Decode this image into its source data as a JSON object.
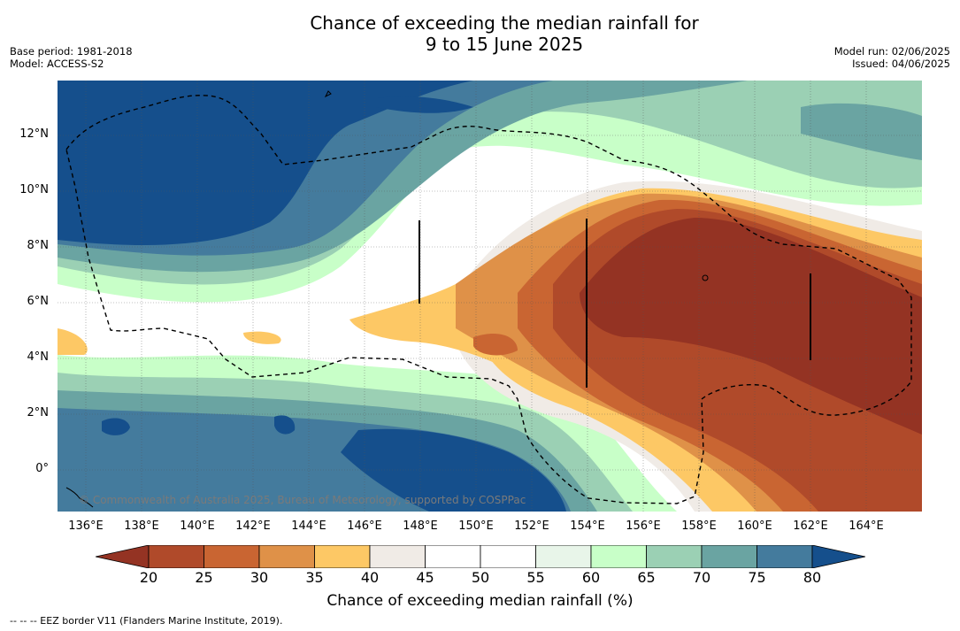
{
  "title_line1": "Chance of exceeding the median rainfall for",
  "title_line2": "9 to 15 June 2025",
  "meta_left": {
    "base_period": "Base period: 1981-2018",
    "model": "Model: ACCESS-S2"
  },
  "meta_right": {
    "model_run": "Model run: 02/06/2025",
    "issued": "Issued: 04/06/2025"
  },
  "copyright": "© Commonwealth of Australia 2025, Bureau of Meteorology, supported by COSPPac",
  "x_ticks": [
    "136°E",
    "138°E",
    "140°E",
    "142°E",
    "144°E",
    "146°E",
    "148°E",
    "150°E",
    "152°E",
    "154°E",
    "156°E",
    "158°E",
    "160°E",
    "162°E",
    "164°E"
  ],
  "y_ticks": [
    "12°N",
    "10°N",
    "8°N",
    "6°N",
    "4°N",
    "2°N",
    "0°"
  ],
  "colorbar": {
    "labels": [
      "20",
      "25",
      "30",
      "35",
      "40",
      "45",
      "50",
      "55",
      "60",
      "65",
      "70",
      "75",
      "80"
    ],
    "colors": [
      "#943323",
      "#b04a2a",
      "#c96532",
      "#df9148",
      "#fdc865",
      "#f0ebe6",
      "#ffffff",
      "#ffffff",
      "#e8f5e9",
      "#c8ffc8",
      "#9bd0b4",
      "#6aa4a2",
      "#447b9d",
      "#154f8c"
    ],
    "title": "Chance of exceeding median rainfall (%)"
  },
  "footer": "--  --  -- EEZ border V11 (Flanders Marine Institute, 2019)."
}
